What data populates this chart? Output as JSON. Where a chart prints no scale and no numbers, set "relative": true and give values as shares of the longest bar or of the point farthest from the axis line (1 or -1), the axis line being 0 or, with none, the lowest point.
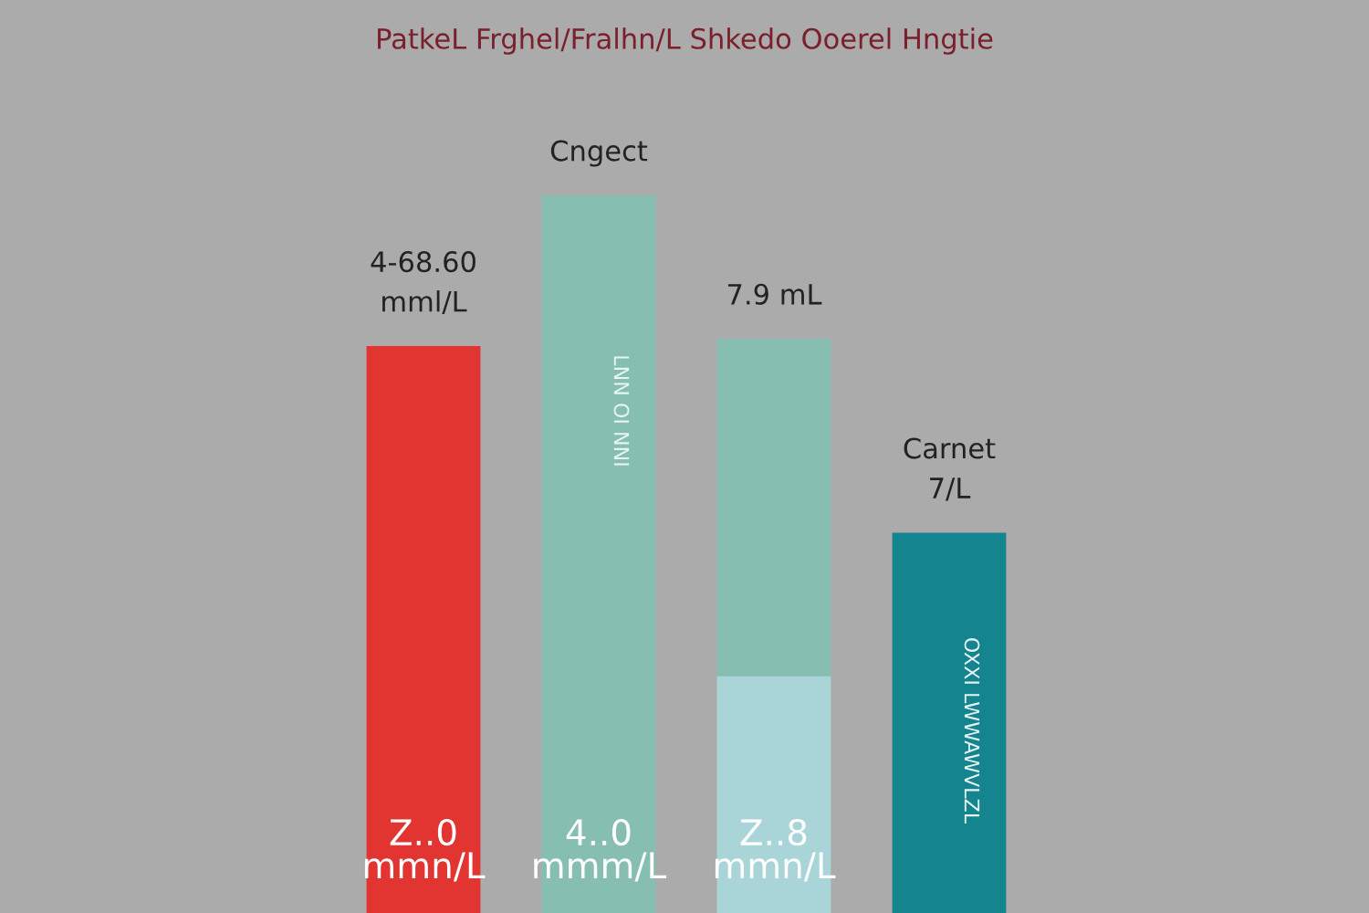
{
  "chart_data": {
    "type": "bar",
    "title": "PatkeL Frghel/Fralhn/L Shkedo Ooerel Hngtie",
    "categories": [
      null,
      null,
      null,
      null
    ],
    "stacked": true,
    "relative": true,
    "series": [
      {
        "colors": [
          "#e23431",
          "#86bfb1",
          "#a9d5d8",
          "#14848f"
        ],
        "values": [
          0.79,
          1.0,
          0.33,
          0.53
        ],
        "value_labels": [
          null,
          null,
          null,
          null
        ]
      },
      {
        "colors": [
          "#86bfb1",
          "#86bfb1",
          "#86bfb1",
          "#86bfb1"
        ],
        "values": [
          null,
          null,
          0.47,
          null
        ],
        "value_labels": [
          null,
          null,
          null,
          null
        ]
      }
    ],
    "annotations": [
      "Z..0\nmmn/L",
      "4..0\nmmm/L",
      "Z..8\nmmn/L",
      "LNN OI NNI",
      "OXXI LWWAWVLZL",
      "4-68.60\nmml/L",
      "Cngect",
      "7.9 mL",
      "Carnet\n7/L"
    ],
    "legend": false
  }
}
